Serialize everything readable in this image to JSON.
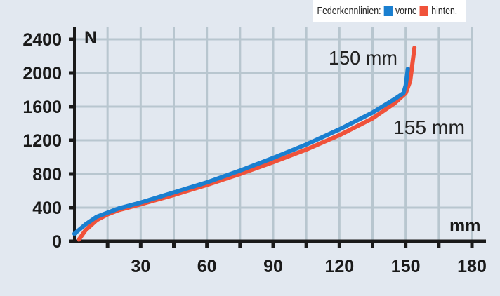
{
  "legend": {
    "title": "Federkennlinien:",
    "items": [
      {
        "label": "vorne",
        "color": "#1a7fd0"
      },
      {
        "label": "hinten.",
        "color": "#f0523a"
      }
    ]
  },
  "chart_data": {
    "type": "line",
    "ylabel": "N",
    "xlabel": "mm",
    "xlim": [
      0,
      180
    ],
    "ylim": [
      0,
      2400
    ],
    "x_ticks": [
      30,
      60,
      90,
      120,
      150,
      180
    ],
    "y_ticks": [
      0,
      400,
      800,
      1200,
      1600,
      2000,
      2400
    ],
    "grid": true,
    "legend_position": "top-right",
    "series": [
      {
        "name": "vorne",
        "color": "#1a7fd0",
        "points": [
          [
            0,
            90
          ],
          [
            5,
            200
          ],
          [
            10,
            290
          ],
          [
            15,
            340
          ],
          [
            20,
            390
          ],
          [
            30,
            460
          ],
          [
            45,
            580
          ],
          [
            60,
            700
          ],
          [
            75,
            840
          ],
          [
            90,
            990
          ],
          [
            105,
            1150
          ],
          [
            120,
            1330
          ],
          [
            135,
            1530
          ],
          [
            145,
            1690
          ],
          [
            149,
            1760
          ],
          [
            150,
            1850
          ],
          [
            151,
            2050
          ]
        ]
      },
      {
        "name": "hinten.",
        "color": "#f0523a",
        "points": [
          [
            2,
            20
          ],
          [
            5,
            130
          ],
          [
            10,
            250
          ],
          [
            15,
            320
          ],
          [
            20,
            370
          ],
          [
            30,
            440
          ],
          [
            45,
            550
          ],
          [
            60,
            670
          ],
          [
            75,
            800
          ],
          [
            90,
            940
          ],
          [
            105,
            1090
          ],
          [
            120,
            1260
          ],
          [
            135,
            1460
          ],
          [
            145,
            1640
          ],
          [
            150,
            1760
          ],
          [
            152,
            1900
          ],
          [
            153,
            2100
          ],
          [
            154,
            2300
          ]
        ]
      }
    ],
    "annotations": [
      "150 mm",
      "155 mm"
    ]
  }
}
